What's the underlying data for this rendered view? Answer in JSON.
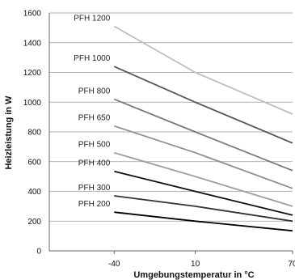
{
  "chart_data": {
    "type": "line",
    "xlabel": "Umgebungstemperatur in °C",
    "ylabel": "Heizleistung in W",
    "x": [
      -40,
      10,
      70
    ],
    "x_ticks": [
      "-40",
      "10",
      "70"
    ],
    "xlim": [
      -80,
      70
    ],
    "ylim": [
      0,
      1600
    ],
    "y_ticks": [
      "0",
      "200",
      "400",
      "600",
      "800",
      "1000",
      "1200",
      "1400",
      "1600"
    ],
    "grid": "horizontal",
    "legend": "none",
    "series": [
      {
        "name": "PFH 1200",
        "values": [
          1510,
          1200,
          920
        ],
        "color": "#bdbdbd"
      },
      {
        "name": "PFH 1000",
        "values": [
          1240,
          1000,
          725
        ],
        "color": "#555555"
      },
      {
        "name": "PFH 800",
        "values": [
          1020,
          800,
          540
        ],
        "color": "#7a7a7a"
      },
      {
        "name": "PFH 650",
        "values": [
          840,
          660,
          420
        ],
        "color": "#8f8f8f"
      },
      {
        "name": "PFH 500",
        "values": [
          660,
          500,
          300
        ],
        "color": "#9e9e9e"
      },
      {
        "name": "PFH 400",
        "values": [
          535,
          400,
          240
        ],
        "color": "#111111"
      },
      {
        "name": "PFH 300",
        "values": [
          370,
          300,
          200
        ],
        "color": "#333333"
      },
      {
        "name": "PFH 200",
        "values": [
          260,
          200,
          135
        ],
        "color": "#000000"
      }
    ]
  }
}
